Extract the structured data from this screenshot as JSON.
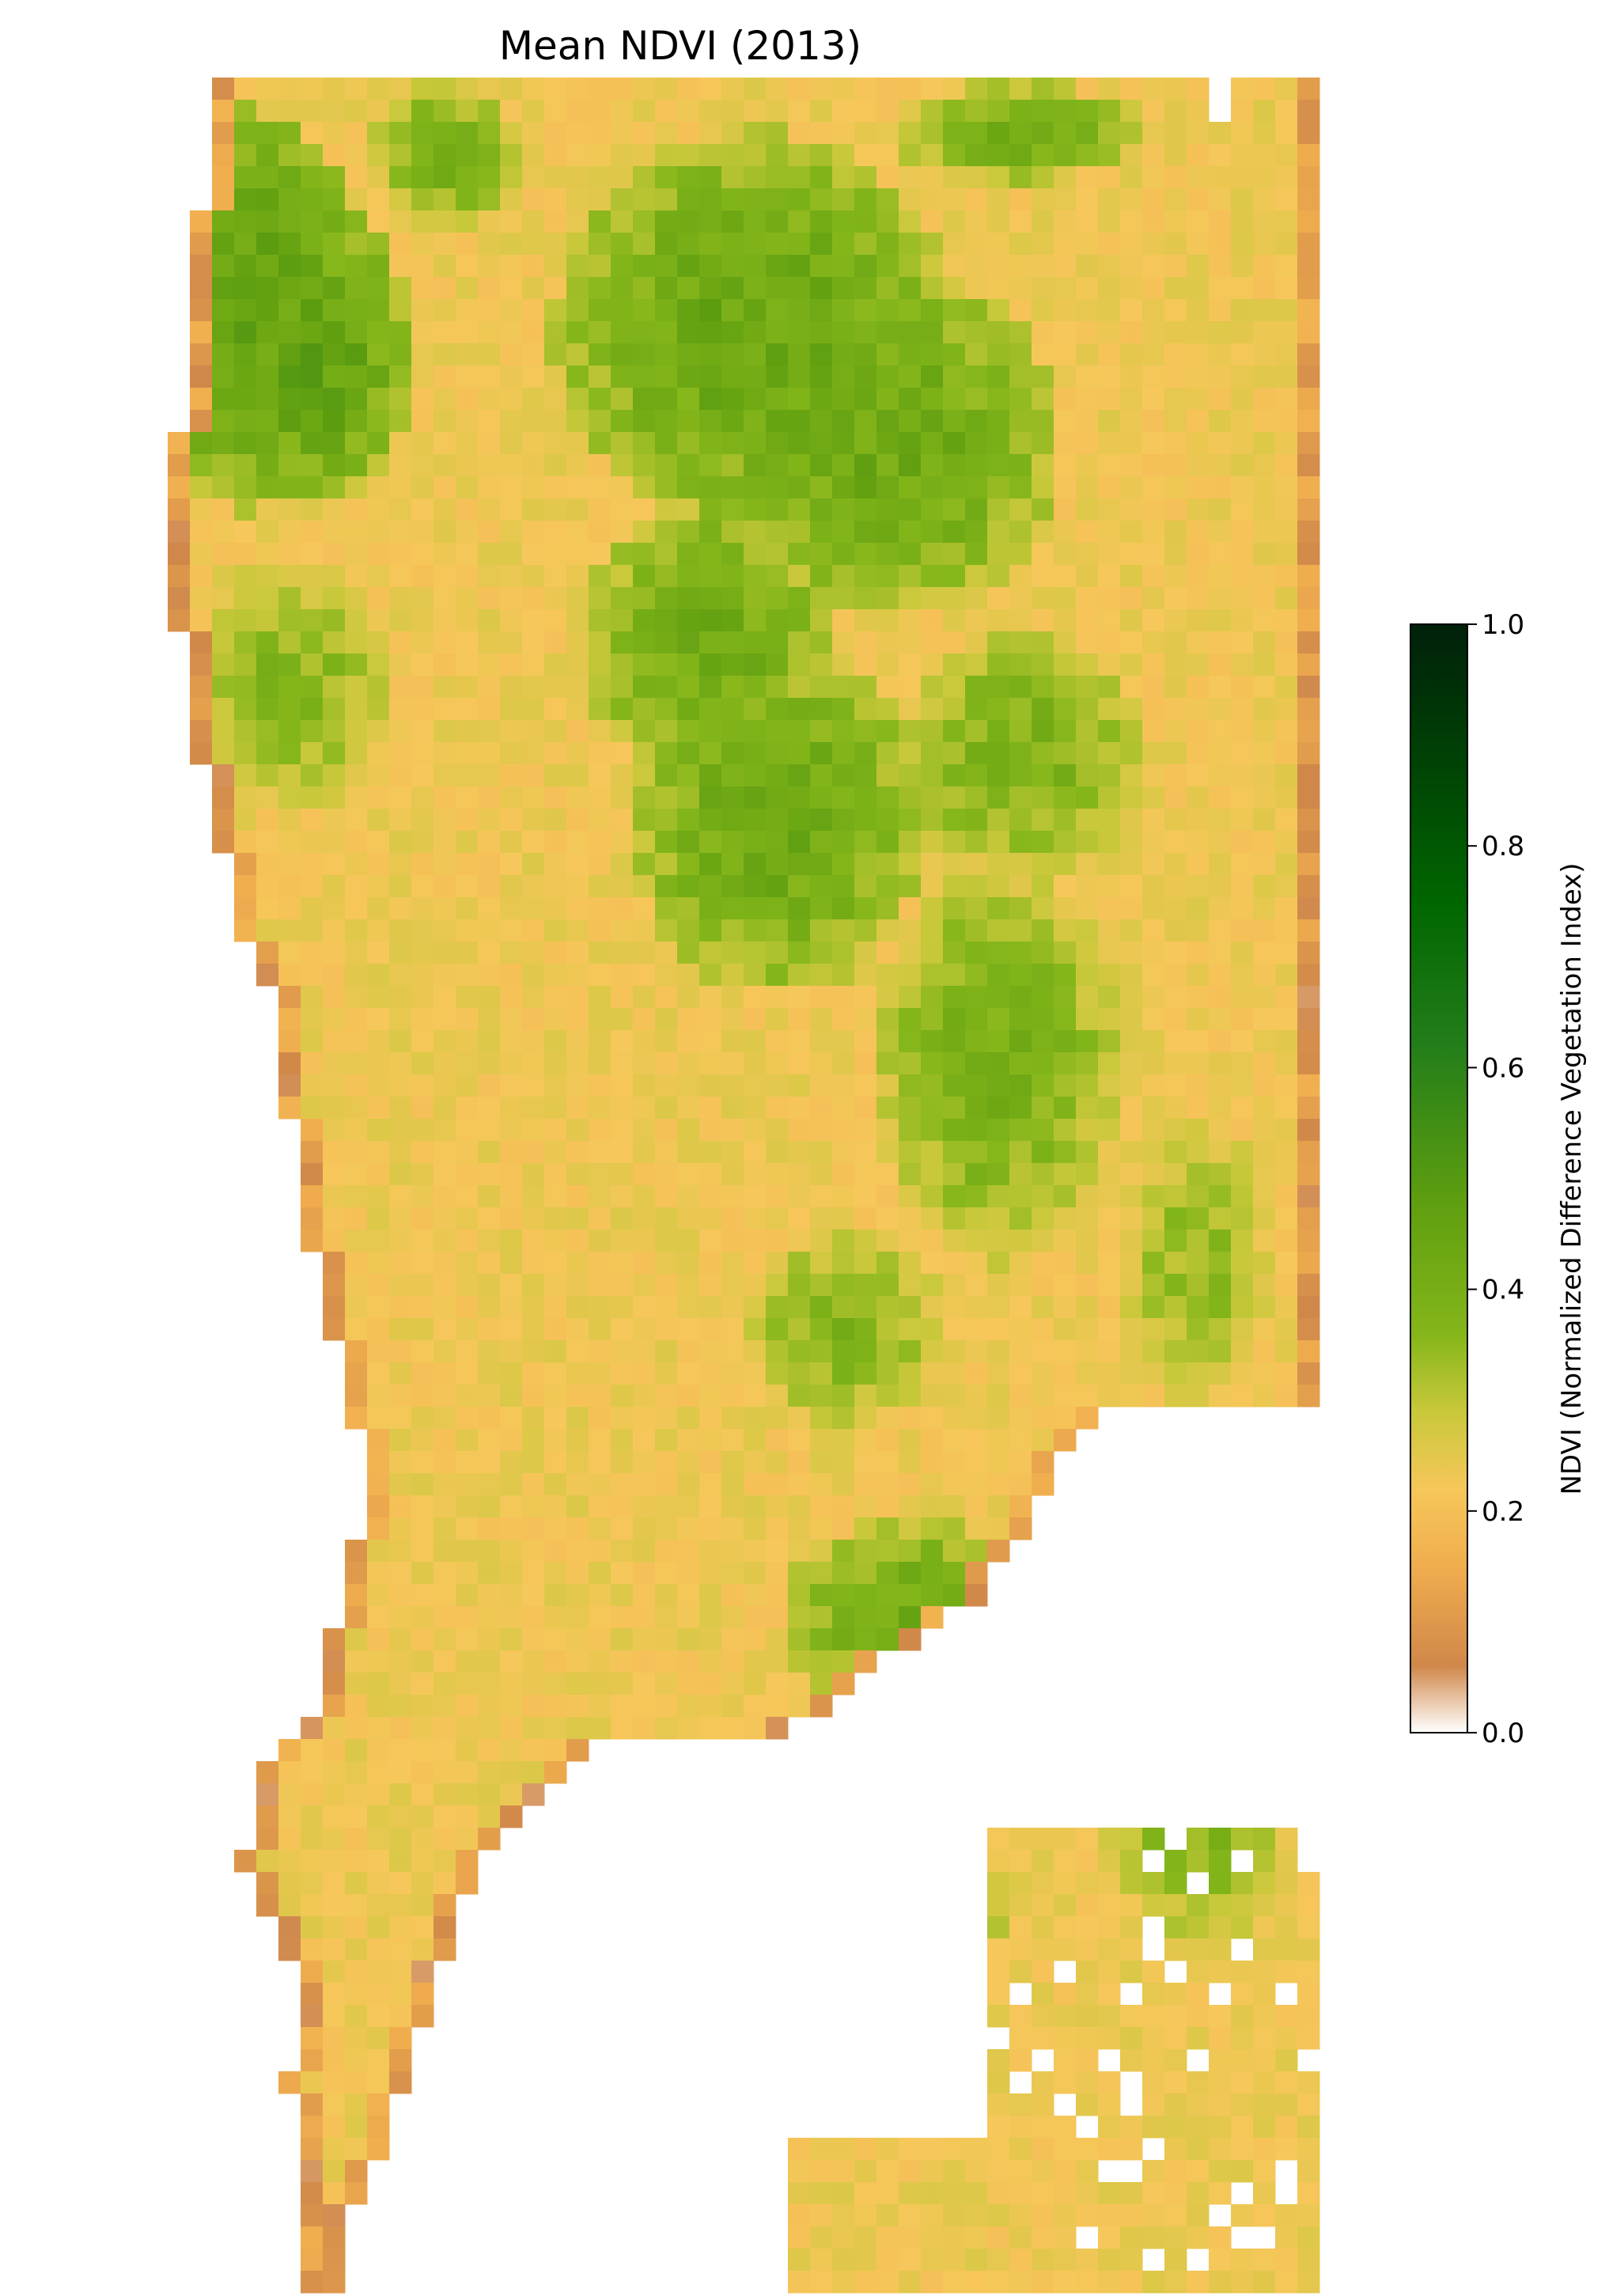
{
  "title": "Mean NDVI (2013)",
  "colorbar": {
    "label": "NDVI (Normalized Difference Vegetation Index)",
    "min": 0.0,
    "max": 1.0,
    "ticks": [
      {
        "value": 0.0,
        "label": "0.0"
      },
      {
        "value": 0.2,
        "label": "0.2"
      },
      {
        "value": 0.4,
        "label": "0.4"
      },
      {
        "value": 0.6,
        "label": "0.6"
      },
      {
        "value": 0.8,
        "label": "0.8"
      },
      {
        "value": 1.0,
        "label": "1.0"
      }
    ],
    "colormap": [
      {
        "value": 0.0,
        "color": "#ffffff"
      },
      {
        "value": 0.06,
        "color": "#d0884a"
      },
      {
        "value": 0.15,
        "color": "#f0ad4e"
      },
      {
        "value": 0.22,
        "color": "#f6c75a"
      },
      {
        "value": 0.29,
        "color": "#c8c83a"
      },
      {
        "value": 0.36,
        "color": "#84b61a"
      },
      {
        "value": 0.48,
        "color": "#5e9e10"
      },
      {
        "value": 0.62,
        "color": "#237e1a"
      },
      {
        "value": 0.75,
        "color": "#006600"
      },
      {
        "value": 1.0,
        "color": "#00200a"
      }
    ]
  },
  "raster": {
    "grid_cols": 52,
    "grid_rows": 100,
    "values_summary": "NDVI grid; nodata shown white"
  }
}
